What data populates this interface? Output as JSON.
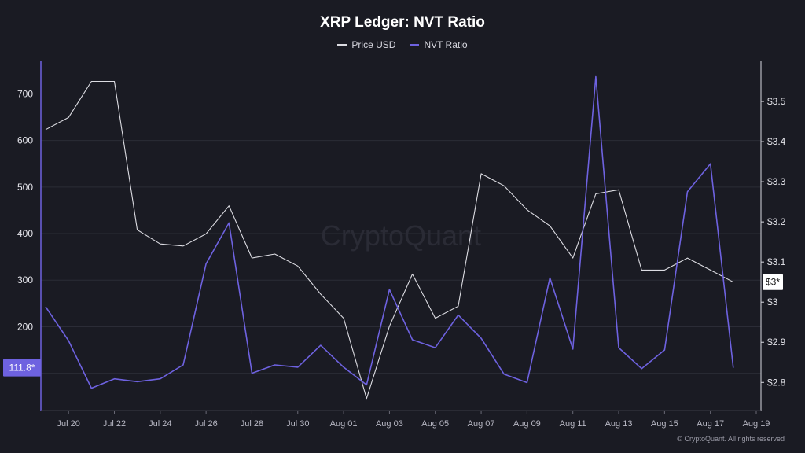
{
  "header": {
    "title": "XRP Ledger: NVT Ratio"
  },
  "legend": {
    "price_label": "Price USD",
    "nvt_label": "NVT Ratio"
  },
  "watermark": "CryptoQuant",
  "footer": "© CryptoQuant. All rights reserved",
  "colors": {
    "background": "#1a1b23",
    "price": "#dcdce2",
    "nvt": "#6e62e0",
    "grid": "#2b2c36",
    "price_badge_bg": "#ffffff",
    "nvt_badge_bg": "#6e62e0"
  },
  "chart_data": {
    "type": "line",
    "title": "XRP Ledger: NVT Ratio",
    "x": [
      "Jul 19",
      "Jul 20",
      "Jul 21",
      "Jul 22",
      "Jul 23",
      "Jul 24",
      "Jul 25",
      "Jul 26",
      "Jul 27",
      "Jul 28",
      "Jul 29",
      "Jul 30",
      "Jul 31",
      "Aug 01",
      "Aug 02",
      "Aug 03",
      "Aug 04",
      "Aug 05",
      "Aug 06",
      "Aug 07",
      "Aug 08",
      "Aug 09",
      "Aug 10",
      "Aug 11",
      "Aug 12",
      "Aug 13",
      "Aug 14",
      "Aug 15",
      "Aug 16",
      "Aug 17",
      "Aug 18"
    ],
    "x_tick_labels": [
      "Jul 20",
      "Jul 22",
      "Jul 24",
      "Jul 26",
      "Jul 28",
      "Jul 30",
      "Aug 01",
      "Aug 03",
      "Aug 05",
      "Aug 07",
      "Aug 09",
      "Aug 11",
      "Aug 13",
      "Aug 15",
      "Aug 17",
      "Aug 19"
    ],
    "x_range": [
      "Jul 19",
      "Aug 19"
    ],
    "left_axis": {
      "ticks": [
        100,
        200,
        300,
        400,
        500,
        600,
        700
      ],
      "ylim": [
        20,
        770
      ]
    },
    "right_axis": {
      "ticks": [
        2.8,
        2.9,
        3.0,
        3.1,
        3.2,
        3.3,
        3.4,
        3.5
      ],
      "tick_labels": [
        "$2.8",
        "$2.9",
        "$3",
        "$3.1",
        "$3.2",
        "$3.3",
        "$3.4",
        "$3.5"
      ],
      "ylim": [
        2.73,
        3.6
      ]
    },
    "series": [
      {
        "name": "Price USD",
        "axis": "right",
        "values": [
          3.43,
          3.46,
          3.55,
          3.55,
          3.18,
          3.145,
          3.14,
          3.17,
          3.24,
          3.11,
          3.12,
          3.09,
          3.02,
          2.96,
          2.76,
          2.94,
          3.07,
          2.96,
          2.99,
          3.32,
          3.29,
          3.23,
          3.19,
          3.11,
          3.27,
          3.28,
          3.08,
          3.08,
          3.11,
          3.08,
          3.05
        ]
      },
      {
        "name": "NVT Ratio",
        "axis": "left",
        "values": [
          243,
          170,
          68,
          88,
          82,
          88,
          118,
          335,
          423,
          100,
          118,
          113,
          160,
          113,
          75,
          280,
          172,
          155,
          225,
          175,
          98,
          80,
          305,
          152,
          737,
          155,
          110,
          150,
          490,
          550,
          111.8
        ]
      }
    ],
    "last_value_labels": {
      "price": "$3*",
      "nvt": "111.8*"
    },
    "grid": true,
    "legend_position": "top"
  }
}
